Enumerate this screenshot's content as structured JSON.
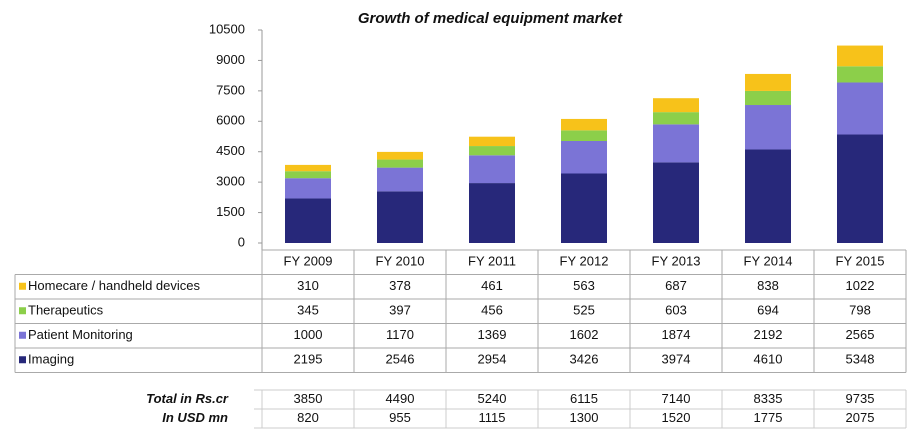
{
  "chart_data": {
    "type": "stacked_bar",
    "title": "Growth of medical equipment market",
    "categories": [
      "FY 2009",
      "FY 2010",
      "FY 2011",
      "FY 2012",
      "FY 2013",
      "FY 2014",
      "FY 2015"
    ],
    "series": [
      {
        "name": "Homecare / handheld devices",
        "color": "#f7c21a",
        "values": [
          310,
          378,
          461,
          563,
          687,
          838,
          1022
        ]
      },
      {
        "name": "Therapeutics",
        "color": "#8ccf4a",
        "values": [
          345,
          397,
          456,
          525,
          603,
          694,
          798
        ]
      },
      {
        "name": "Patient Monitoring",
        "color": "#7b74d6",
        "values": [
          1000,
          1170,
          1369,
          1602,
          1874,
          2192,
          2565
        ]
      },
      {
        "name": "Imaging",
        "color": "#27287a",
        "values": [
          2195,
          2546,
          2954,
          3426,
          3974,
          4610,
          5348
        ]
      }
    ],
    "ylim": [
      0,
      10500
    ],
    "yticks": [
      0,
      1500,
      3000,
      4500,
      6000,
      7500,
      9000,
      10500
    ],
    "table_rows": [
      {
        "label": "Total in Rs.cr",
        "values": [
          3850,
          4490,
          5240,
          6115,
          7140,
          8335,
          9735
        ]
      },
      {
        "label": "In USD mn",
        "values": [
          820,
          955,
          1115,
          1300,
          1520,
          1775,
          2075
        ]
      }
    ]
  }
}
